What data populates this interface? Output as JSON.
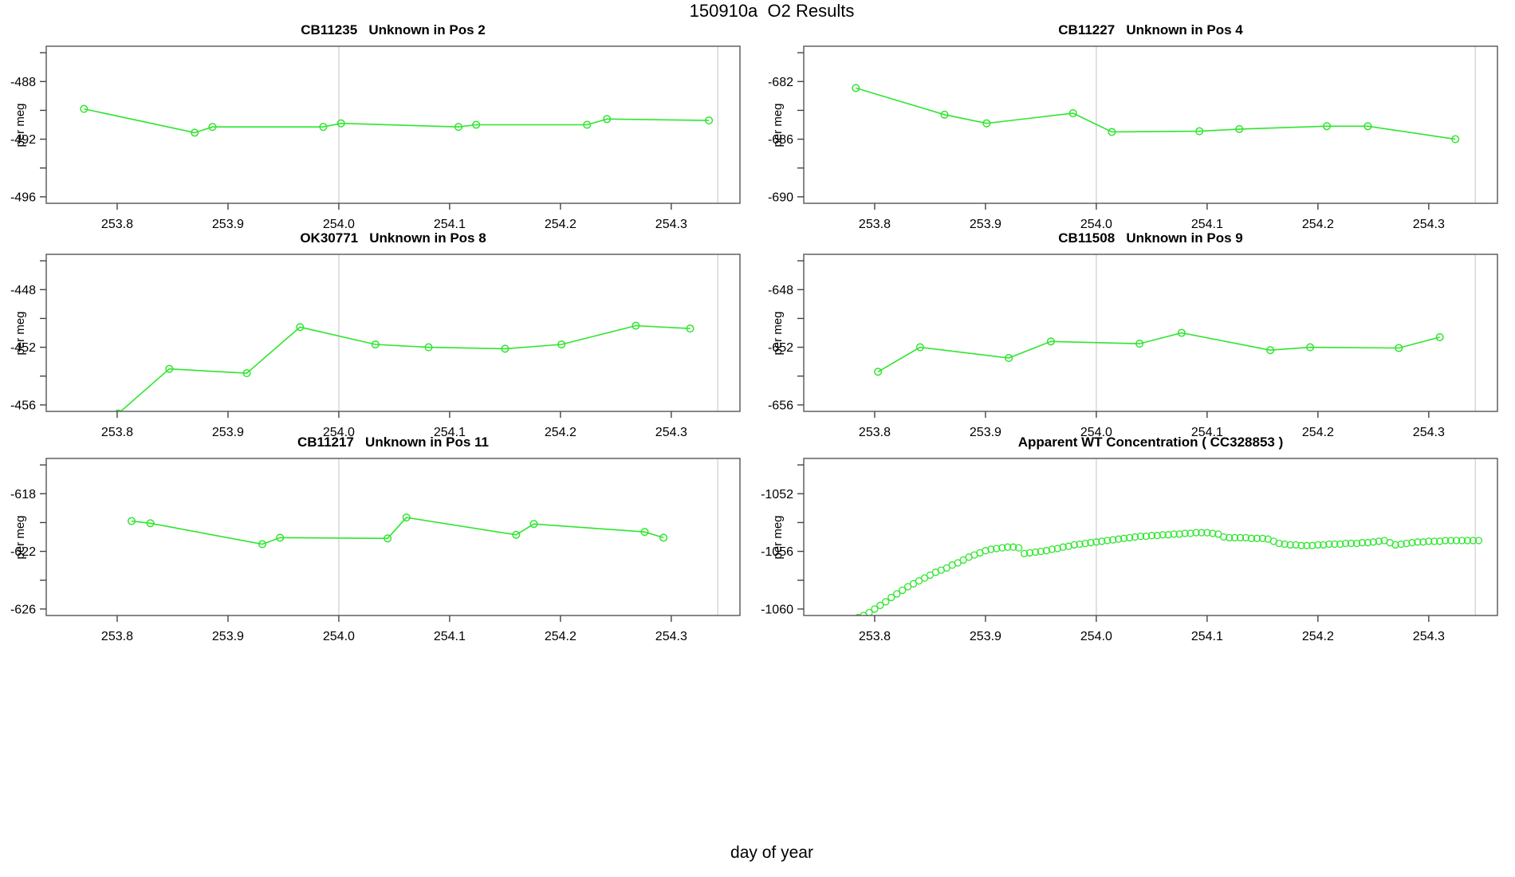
{
  "page_title": "150910a  O2 Results",
  "x_axis_label": "day of year",
  "style": {
    "series_color": "#2ee62e",
    "grid_color": "#d4d4d4",
    "box_color": "#555555",
    "tick_color": "#444444",
    "text_color": "#000000",
    "background": "#ffffff"
  },
  "chart_data": [
    {
      "type": "line",
      "title": "CB11235   Unknown in Pos 2",
      "ylabel": "per meg",
      "xlim": [
        253.736,
        254.362
      ],
      "ylim": [
        -496.45,
        -485.55
      ],
      "x_ticks": [
        253.8,
        253.9,
        254.0,
        254.1,
        254.2,
        254.3
      ],
      "x_tick_labels": [
        "253.8",
        "253.9",
        "254.0",
        "254.1",
        "254.2",
        "254.3"
      ],
      "y_ticks": [
        -488,
        -492,
        -496
      ],
      "y_tick_labels": [
        "-488",
        "-492",
        "-496"
      ],
      "vlines": [
        254.0,
        254.342
      ],
      "x": [
        253.77,
        253.87,
        253.886,
        253.986,
        254.002,
        254.108,
        254.124,
        254.224,
        254.242,
        254.334
      ],
      "y": [
        -489.9,
        -491.55,
        -491.15,
        -491.15,
        -490.9,
        -491.15,
        -491.0,
        -491.0,
        -490.6,
        -490.7
      ]
    },
    {
      "type": "line",
      "title": "CB11227   Unknown in Pos 4",
      "ylabel": "per meg",
      "xlim": [
        253.736,
        254.362
      ],
      "ylim": [
        -690.45,
        -679.55
      ],
      "x_ticks": [
        253.8,
        253.9,
        254.0,
        254.1,
        254.2,
        254.3
      ],
      "x_tick_labels": [
        "253.8",
        "253.9",
        "254.0",
        "254.1",
        "254.2",
        "254.3"
      ],
      "y_ticks": [
        -682,
        -686,
        -690
      ],
      "y_tick_labels": [
        "-682",
        "-686",
        "-690"
      ],
      "vlines": [
        254.0,
        254.342
      ],
      "x": [
        253.783,
        253.863,
        253.901,
        253.979,
        254.014,
        254.093,
        254.129,
        254.208,
        254.245,
        254.324
      ],
      "y": [
        -682.45,
        -684.3,
        -684.9,
        -684.2,
        -685.5,
        -685.45,
        -685.3,
        -685.1,
        -685.1,
        -686.0
      ]
    },
    {
      "type": "line",
      "title": "OK30771   Unknown in Pos 8",
      "ylabel": "per meg",
      "xlim": [
        253.736,
        254.362
      ],
      "ylim": [
        -456.45,
        -445.55
      ],
      "x_ticks": [
        253.8,
        253.9,
        254.0,
        254.1,
        254.2,
        254.3
      ],
      "x_tick_labels": [
        "253.8",
        "253.9",
        "254.0",
        "254.1",
        "254.2",
        "254.3"
      ],
      "y_ticks": [
        -448,
        -452,
        -456
      ],
      "y_tick_labels": [
        "-448",
        "-452",
        "-456"
      ],
      "vlines": [
        254.0,
        254.342
      ],
      "x": [
        253.801,
        253.847,
        253.917,
        253.965,
        254.033,
        254.081,
        254.15,
        254.201,
        254.268,
        254.317
      ],
      "y": [
        -456.6,
        -453.5,
        -453.8,
        -450.6,
        -451.8,
        -452.0,
        -452.1,
        -451.8,
        -450.5,
        -450.7
      ]
    },
    {
      "type": "line",
      "title": "CB11508   Unknown in Pos 9",
      "ylabel": "per meg",
      "xlim": [
        253.736,
        254.362
      ],
      "ylim": [
        -656.45,
        -645.55
      ],
      "x_ticks": [
        253.8,
        253.9,
        254.0,
        254.1,
        254.2,
        254.3
      ],
      "x_tick_labels": [
        "253.8",
        "253.9",
        "254.0",
        "254.1",
        "254.2",
        "254.3"
      ],
      "y_ticks": [
        -648,
        -652,
        -656
      ],
      "y_tick_labels": [
        "-648",
        "-652",
        "-656"
      ],
      "vlines": [
        254.0,
        254.342
      ],
      "x": [
        253.803,
        253.841,
        253.921,
        253.959,
        254.039,
        254.077,
        254.157,
        254.193,
        254.273,
        254.31
      ],
      "y": [
        -653.7,
        -652.0,
        -652.75,
        -651.6,
        -651.75,
        -651.0,
        -652.2,
        -652.0,
        -652.05,
        -651.3
      ]
    },
    {
      "type": "line",
      "title": "CB11217   Unknown in Pos 11",
      "ylabel": "per meg",
      "xlim": [
        253.736,
        254.362
      ],
      "ylim": [
        -626.45,
        -615.55
      ],
      "x_ticks": [
        253.8,
        253.9,
        254.0,
        254.1,
        254.2,
        254.3
      ],
      "x_tick_labels": [
        "253.8",
        "253.9",
        "254.0",
        "254.1",
        "254.2",
        "254.3"
      ],
      "y_ticks": [
        -618,
        -622,
        -626
      ],
      "y_tick_labels": [
        "-618",
        "-622",
        "-626"
      ],
      "vlines": [
        254.0,
        254.342
      ],
      "x": [
        253.813,
        253.83,
        253.931,
        253.947,
        254.044,
        254.061,
        254.16,
        254.176,
        254.276,
        254.293
      ],
      "y": [
        -619.9,
        -620.05,
        -621.5,
        -621.05,
        -621.1,
        -619.65,
        -620.85,
        -620.1,
        -620.65,
        -621.05
      ]
    },
    {
      "type": "scatter",
      "title": "Apparent WT Concentration ( CC328853 )",
      "ylabel": "per meg",
      "xlim": [
        253.736,
        254.362
      ],
      "ylim": [
        -1060.45,
        -1049.55
      ],
      "x_ticks": [
        253.8,
        253.9,
        254.0,
        254.1,
        254.2,
        254.3
      ],
      "x_tick_labels": [
        "253.8",
        "253.9",
        "254.0",
        "254.1",
        "254.2",
        "254.3"
      ],
      "y_ticks": [
        -1052,
        -1056,
        -1060
      ],
      "y_tick_labels": [
        "-1052",
        "-1056",
        "-1060"
      ],
      "vlines": [
        254.0,
        254.342
      ],
      "x": [
        253.785,
        253.79,
        253.795,
        253.8,
        253.805,
        253.81,
        253.815,
        253.82,
        253.825,
        253.83,
        253.835,
        253.84,
        253.845,
        253.85,
        253.855,
        253.86,
        253.865,
        253.87,
        253.875,
        253.88,
        253.885,
        253.89,
        253.895,
        253.9,
        253.905,
        253.91,
        253.915,
        253.92,
        253.925,
        253.93,
        253.935,
        253.94,
        253.945,
        253.95,
        253.955,
        253.96,
        253.965,
        253.97,
        253.975,
        253.98,
        253.985,
        253.99,
        253.995,
        254.0,
        254.005,
        254.01,
        254.015,
        254.02,
        254.025,
        254.03,
        254.035,
        254.04,
        254.045,
        254.05,
        254.055,
        254.06,
        254.065,
        254.07,
        254.075,
        254.08,
        254.085,
        254.09,
        254.095,
        254.1,
        254.105,
        254.11,
        254.115,
        254.12,
        254.125,
        254.13,
        254.135,
        254.14,
        254.145,
        254.15,
        254.155,
        254.16,
        254.165,
        254.17,
        254.175,
        254.18,
        254.185,
        254.19,
        254.195,
        254.2,
        254.205,
        254.21,
        254.215,
        254.22,
        254.225,
        254.23,
        254.235,
        254.24,
        254.245,
        254.25,
        254.255,
        254.26,
        254.265,
        254.27,
        254.275,
        254.28,
        254.285,
        254.29,
        254.295,
        254.3,
        254.305,
        254.31,
        254.315,
        254.32,
        254.325,
        254.33,
        254.335,
        254.34,
        254.345
      ],
      "y": [
        -1060.6,
        -1060.45,
        -1060.25,
        -1060.0,
        -1059.75,
        -1059.5,
        -1059.2,
        -1058.95,
        -1058.7,
        -1058.45,
        -1058.25,
        -1058.05,
        -1057.85,
        -1057.65,
        -1057.45,
        -1057.3,
        -1057.15,
        -1056.95,
        -1056.8,
        -1056.6,
        -1056.4,
        -1056.25,
        -1056.1,
        -1055.95,
        -1055.85,
        -1055.8,
        -1055.75,
        -1055.7,
        -1055.7,
        -1055.75,
        -1056.15,
        -1056.1,
        -1056.05,
        -1056.0,
        -1055.95,
        -1055.85,
        -1055.8,
        -1055.7,
        -1055.65,
        -1055.55,
        -1055.5,
        -1055.45,
        -1055.4,
        -1055.35,
        -1055.3,
        -1055.25,
        -1055.2,
        -1055.15,
        -1055.1,
        -1055.05,
        -1055.0,
        -1054.95,
        -1054.95,
        -1054.9,
        -1054.9,
        -1054.85,
        -1054.85,
        -1054.8,
        -1054.8,
        -1054.75,
        -1054.75,
        -1054.7,
        -1054.7,
        -1054.7,
        -1054.75,
        -1054.8,
        -1055.0,
        -1055.05,
        -1055.05,
        -1055.05,
        -1055.05,
        -1055.1,
        -1055.1,
        -1055.1,
        -1055.15,
        -1055.3,
        -1055.45,
        -1055.5,
        -1055.55,
        -1055.55,
        -1055.6,
        -1055.6,
        -1055.6,
        -1055.55,
        -1055.55,
        -1055.5,
        -1055.5,
        -1055.5,
        -1055.45,
        -1055.45,
        -1055.45,
        -1055.4,
        -1055.4,
        -1055.35,
        -1055.3,
        -1055.25,
        -1055.4,
        -1055.55,
        -1055.5,
        -1055.45,
        -1055.4,
        -1055.35,
        -1055.35,
        -1055.3,
        -1055.3,
        -1055.3,
        -1055.25,
        -1055.25,
        -1055.25,
        -1055.25,
        -1055.25,
        -1055.25,
        -1055.25
      ]
    }
  ]
}
